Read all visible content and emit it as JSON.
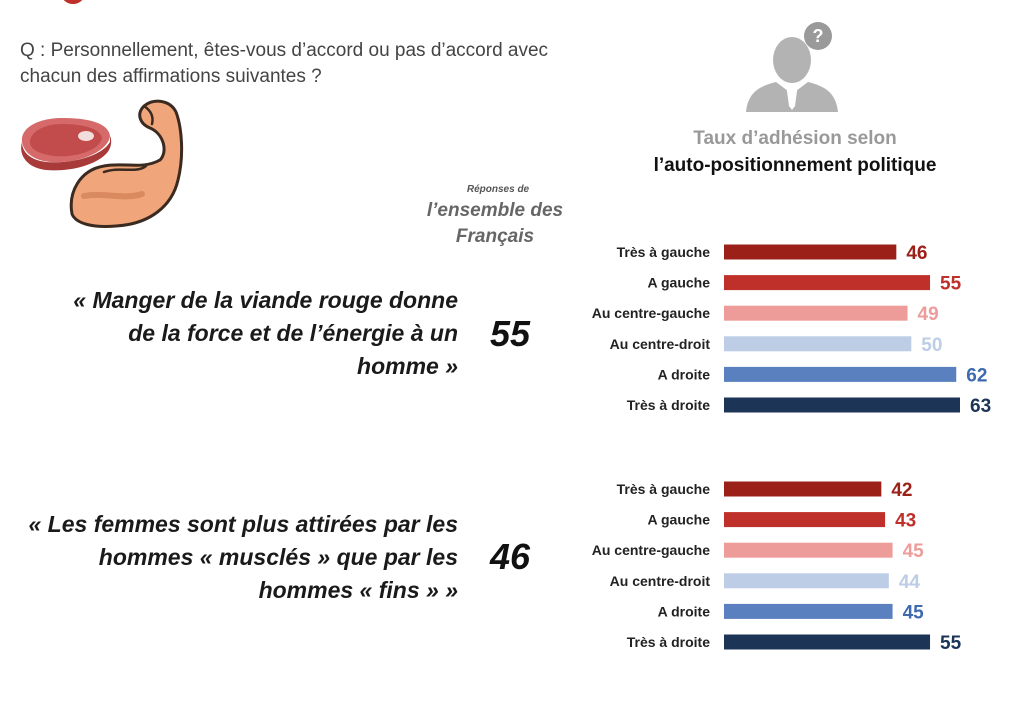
{
  "question": {
    "line1": "Q : Personnellement, êtes-vous d’accord ou pas d’accord avec",
    "line2": "chacun des affirmations suivantes ?"
  },
  "header": {
    "taux_line1": "Taux d’adhésion selon",
    "taux_line2": "l’auto-positionnement politique"
  },
  "overall_label": {
    "small": "Réponses de",
    "line1": "l’ensemble des",
    "line2": "Français"
  },
  "icons": {
    "user": "person-question-icon",
    "meat": "meat-steak-icon",
    "arm": "flexed-biceps-icon"
  },
  "statements": [
    {
      "lines": [
        "« Manger de la viande rouge donne",
        "de la force et de l’énergie à un",
        "homme »"
      ],
      "overall": "55"
    },
    {
      "lines": [
        "« Les femmes sont plus attirées par les",
        "hommes « musclés » que par les",
        "hommes « fins » »"
      ],
      "overall": "46"
    }
  ],
  "chart_data": [
    {
      "type": "bar",
      "orientation": "horizontal",
      "categories": [
        "Très à gauche",
        "A gauche",
        "Au centre-gauche",
        "Au centre-droit",
        "A droite",
        "Très à droite"
      ],
      "values": [
        46,
        55,
        49,
        50,
        62,
        63
      ],
      "xlim": [
        0,
        63
      ],
      "grid": false,
      "legend": "none"
    },
    {
      "type": "bar",
      "orientation": "horizontal",
      "categories": [
        "Très à gauche",
        "A gauche",
        "Au centre-gauche",
        "Au centre-droit",
        "A droite",
        "Très à droite"
      ],
      "values": [
        42,
        43,
        45,
        44,
        45,
        55
      ],
      "xlim": [
        0,
        63
      ],
      "grid": false,
      "legend": "none"
    }
  ],
  "colors": {
    "bars": [
      "#9b2018",
      "#c0302a",
      "#ee9c9a",
      "#bdcde6",
      "#5a80bf",
      "#1c3557"
    ],
    "labels": [
      "#9b2018",
      "#c0302a",
      "#ee9c9a",
      "#bdcde6",
      "#3f6aae",
      "#1c3557"
    ]
  }
}
